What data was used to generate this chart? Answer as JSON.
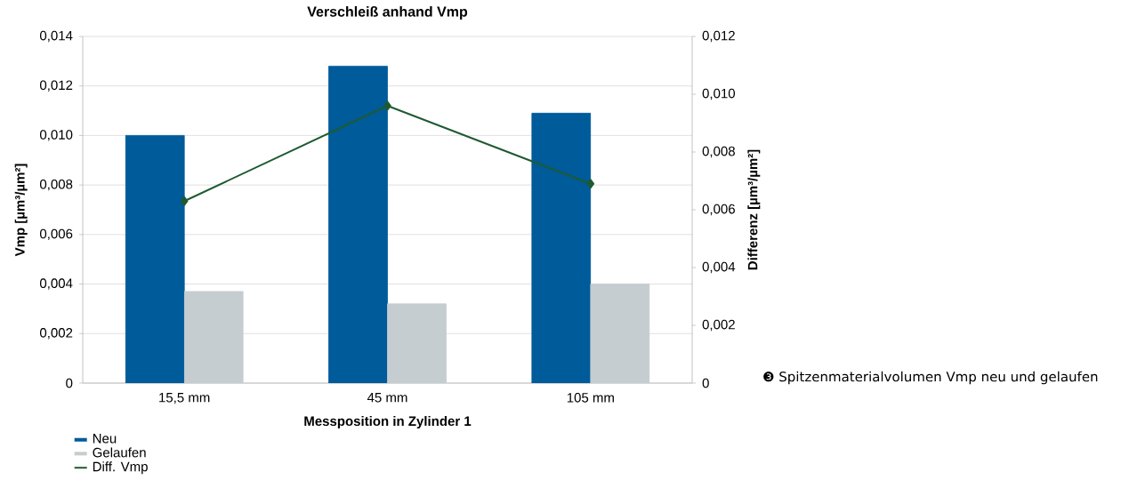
{
  "chart_data": {
    "type": "bar",
    "title": "Verschleiß anhand Vmp",
    "xlabel": "Messposition in Zylinder 1",
    "ylabel": "Vmp [µm³/µm²]",
    "y2label": "Differenz [µm³/µm²]",
    "categories": [
      "15,5 mm",
      "45 mm",
      "105 mm"
    ],
    "series": [
      {
        "name": "Neu",
        "color": "#005b9a",
        "values": [
          0.01,
          0.0128,
          0.0109
        ]
      },
      {
        "name": "Gelaufen",
        "color": "#c5cdd0",
        "values": [
          0.0037,
          0.0032,
          0.004
        ]
      },
      {
        "name": "Diff. Vmp",
        "type": "line",
        "axis": "y2",
        "marker": "diamond",
        "color": "#1e5a32",
        "values": [
          0.0063,
          0.0096,
          0.0069
        ]
      }
    ],
    "ylim": [
      0,
      0.014
    ],
    "yticks": [
      0,
      {
        "value": 0.002,
        "label": "0,002"
      },
      {
        "value": 0.004,
        "label": "0,004"
      },
      {
        "value": 0.006,
        "label": "0,006"
      },
      {
        "value": 0.008,
        "label": "0,008"
      },
      {
        "value": 0.01,
        "label": "0,010"
      },
      {
        "value": 0.012,
        "label": "0,012"
      },
      {
        "value": 0.014,
        "label": "0,014"
      }
    ],
    "y2lim": [
      0,
      0.012
    ],
    "y2ticks": [
      0,
      {
        "value": 0.002,
        "label": "0,002"
      },
      {
        "value": 0.004,
        "label": "0,004"
      },
      {
        "value": 0.006,
        "label": "0,006"
      },
      {
        "value": 0.008,
        "label": "0,008"
      },
      {
        "value": 0.01,
        "label": "0,010"
      },
      {
        "value": 0.012,
        "label": "0,012"
      }
    ],
    "grid": "y",
    "legend": "bottom",
    "annotations": [
      "❸ Spitzenmaterialvolumen Vmp neu und gelaufen"
    ]
  }
}
